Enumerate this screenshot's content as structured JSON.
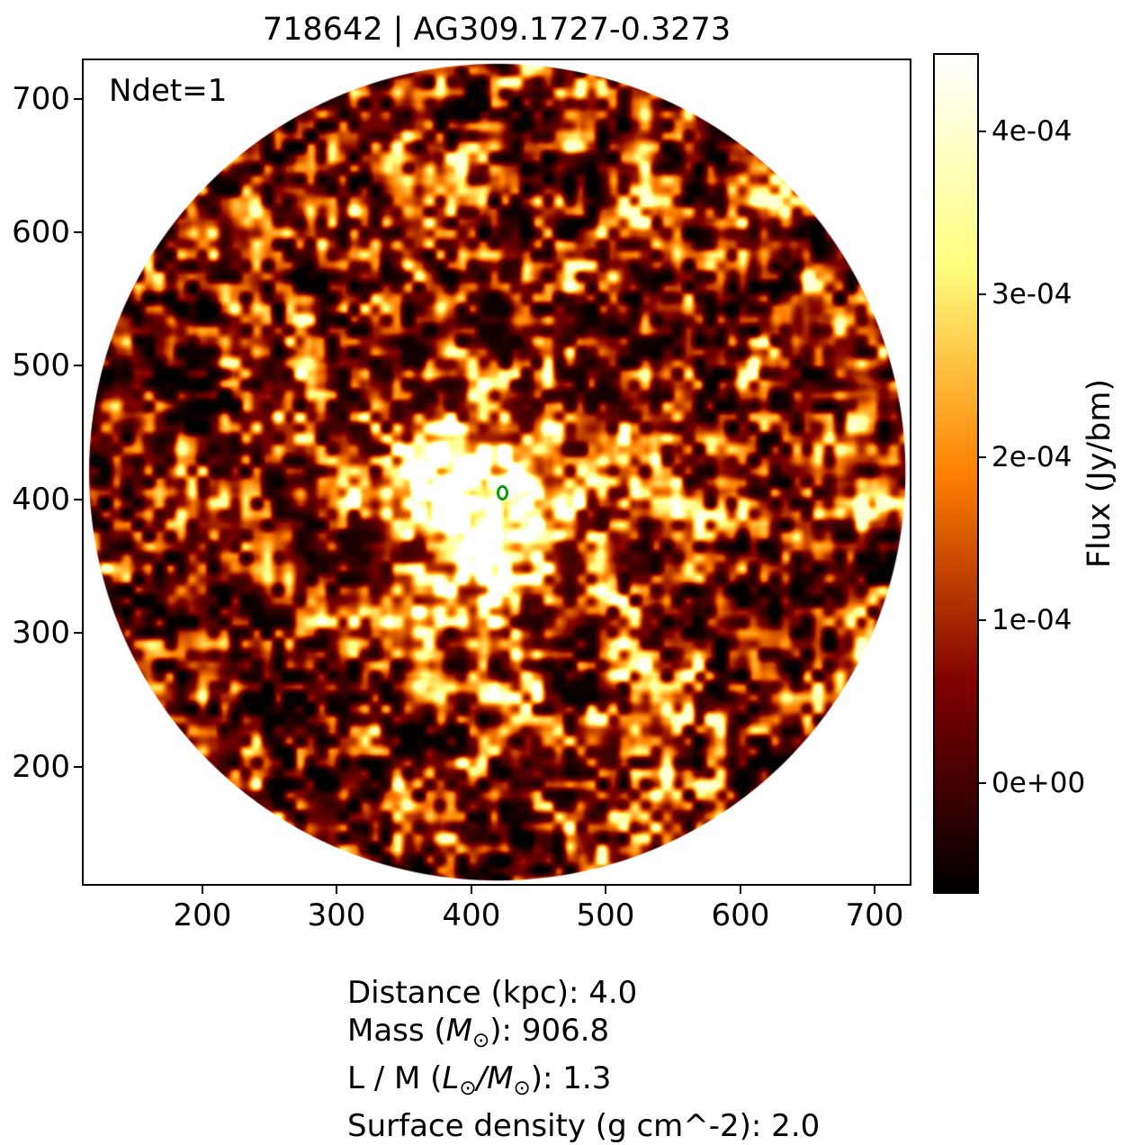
{
  "figure": {
    "title": "718642 | AG309.1727-0.3273",
    "annotation": "Ndet=1"
  },
  "axes": {
    "x_tick_labels": [
      "200",
      "300",
      "400",
      "500",
      "600",
      "700"
    ],
    "y_tick_labels": [
      "700",
      "600",
      "500",
      "400",
      "300",
      "200"
    ]
  },
  "colorbar": {
    "label": "Flux (Jy/bm)",
    "tick_labels": [
      "4e-04",
      "3e-04",
      "2e-04",
      "1e-04",
      "0e+00"
    ],
    "gradient_anchors": [
      "#000000",
      "#800000",
      "#ff8000",
      "#ffff80",
      "#ffffff"
    ]
  },
  "info": {
    "line1": "Distance (kpc): 4.0",
    "line2_pre": "Mass (",
    "line2_sym": "M",
    "line2_sub": "⊙",
    "line2_post": "): 906.8",
    "line3_pre": "L / M (",
    "line3_sym1": "L",
    "line3_sub1": "⊙",
    "line3_mid": "/",
    "line3_sym2": "M",
    "line3_sub2": "⊙",
    "line3_post": "): 1.3",
    "line4": "Surface density (g cm^-2): 2.0"
  },
  "chart_data": {
    "type": "heatmap",
    "title": "718642 | AG309.1727-0.3273",
    "xlabel": "",
    "ylabel": "",
    "xlim": [
      112,
      729
    ],
    "ylim": [
      107,
      732
    ],
    "x_ticks": [
      200,
      300,
      400,
      500,
      600,
      700
    ],
    "y_ticks": [
      200,
      300,
      400,
      500,
      600,
      700
    ],
    "grid": false,
    "colormap": "afmhot",
    "colorbar": {
      "label": "Flux (Jy/bm)",
      "tick_values": [
        0,
        0.0001,
        0.0002,
        0.0003,
        0.0004
      ],
      "tick_labels": [
        "0e+00",
        "1e-04",
        "2e-04",
        "3e-04",
        "4e-04"
      ],
      "vmin": -6.5e-05,
      "vmax": 0.00045,
      "position": "right"
    },
    "field_of_view": {
      "shape": "circle",
      "center_x": 419,
      "center_y": 421,
      "radius": 305,
      "outside_color": "#ffffff"
    },
    "annotations": [
      {
        "text": "Ndet=1",
        "corner": "top-left"
      }
    ],
    "detections": [
      {
        "x": 423,
        "y": 405,
        "marker": "open-ellipse",
        "color": "#0d990d"
      }
    ],
    "bright_source": {
      "x": 414,
      "y": 398,
      "note": "extended bright emission surrounding the detection"
    },
    "background": "speckled thermal-noise map, dark with orange filaments",
    "stats": {
      "distance_kpc": 4.0,
      "mass_msun": 906.8,
      "l_over_m_lsun_per_msun": 1.3,
      "surface_density_g_cm2": 2.0
    }
  }
}
